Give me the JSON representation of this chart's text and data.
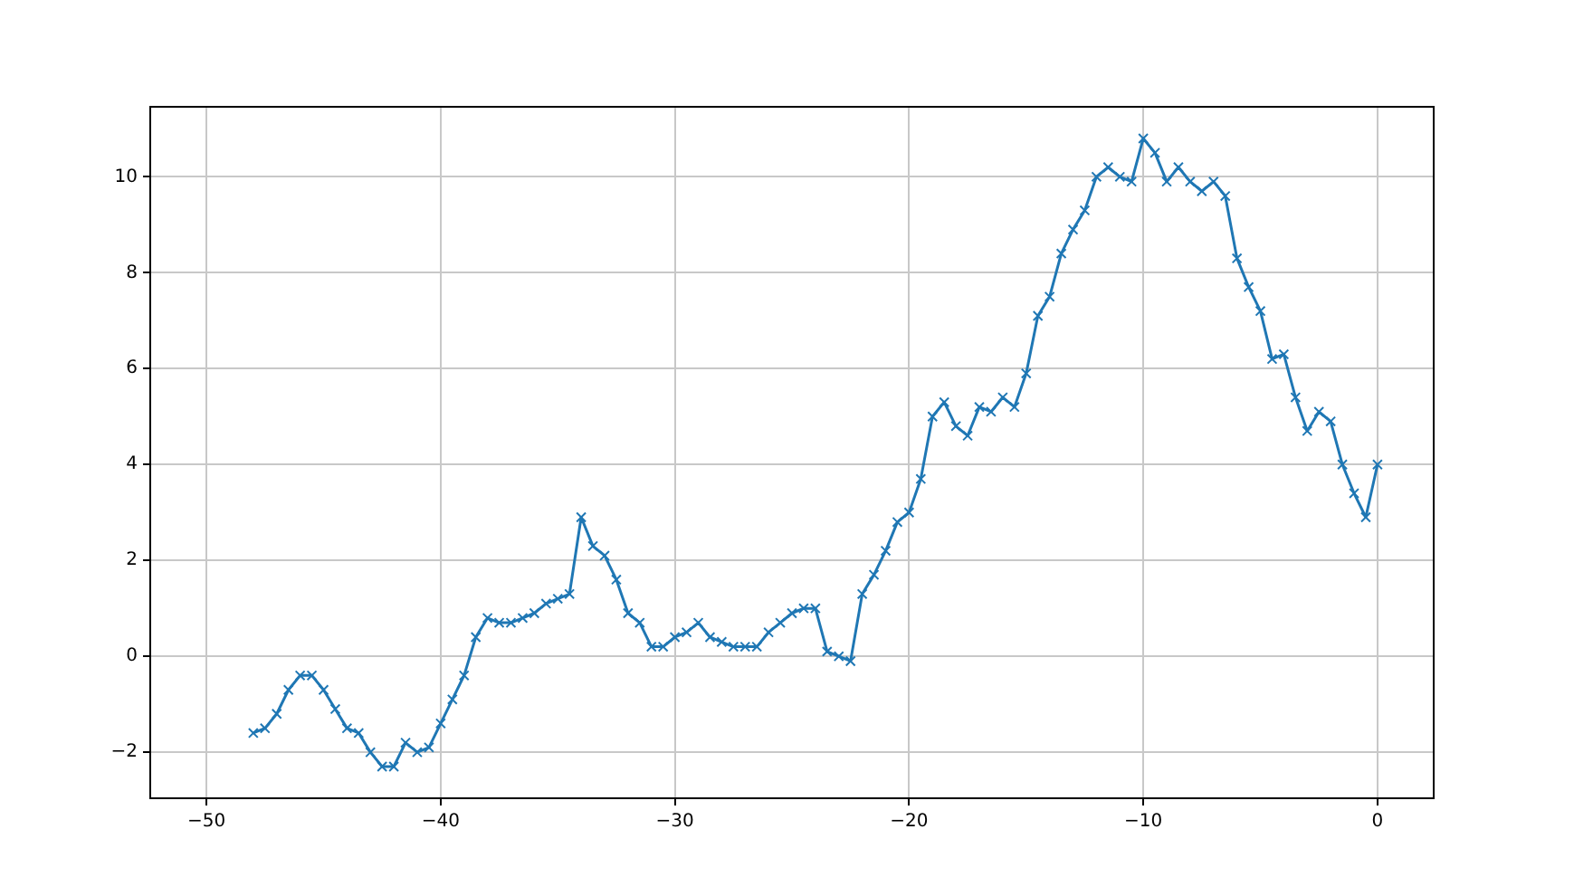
{
  "chart_data": {
    "type": "line",
    "x": [
      -48,
      -47.5,
      -47,
      -46.5,
      -46,
      -45.5,
      -45,
      -44.5,
      -44,
      -43.5,
      -43,
      -42.5,
      -42,
      -41.5,
      -41,
      -40.5,
      -40,
      -39.5,
      -39,
      -38.5,
      -38,
      -37.5,
      -37,
      -36.5,
      -36,
      -35.5,
      -35,
      -34.5,
      -34,
      -33.5,
      -33,
      -32.5,
      -32,
      -31.5,
      -31,
      -30.5,
      -30,
      -29.5,
      -29,
      -28.5,
      -28,
      -27.5,
      -27,
      -26.5,
      -26,
      -25.5,
      -25,
      -24.5,
      -24,
      -23.5,
      -23,
      -22.5,
      -22,
      -21.5,
      -21,
      -20.5,
      -20,
      -19.5,
      -19,
      -18.5,
      -18,
      -17.5,
      -17,
      -16.5,
      -16,
      -15.5,
      -15,
      -14.5,
      -14,
      -13.5,
      -13,
      -12.5,
      -12,
      -11.5,
      -11,
      -10.5,
      -10,
      -9.5,
      -9,
      -8.5,
      -8,
      -7.5,
      -7,
      -6.5,
      -6,
      -5.5,
      -5,
      -4.5,
      -4,
      -3.5,
      -3,
      -2.5,
      -2,
      -1.5,
      -1,
      -0.5,
      0
    ],
    "series": [
      {
        "color": "#1f77b4",
        "values": [
          -1.6,
          -1.5,
          -1.2,
          -0.7,
          -0.4,
          -0.4,
          -0.7,
          -1.1,
          -1.5,
          -1.6,
          -2.0,
          -2.3,
          -2.3,
          -1.8,
          -2.0,
          -1.9,
          -1.4,
          -0.9,
          -0.4,
          0.4,
          0.8,
          0.7,
          0.7,
          0.8,
          0.9,
          1.1,
          1.2,
          1.3,
          2.9,
          2.3,
          2.1,
          1.6,
          0.9,
          0.7,
          0.2,
          0.2,
          0.4,
          0.5,
          0.7,
          0.4,
          0.3,
          0.2,
          0.2,
          0.2,
          0.5,
          0.7,
          0.9,
          1.0,
          1.0,
          0.1,
          0.0,
          -0.1,
          1.3,
          1.7,
          2.2,
          2.8,
          3.0,
          3.7,
          5.0,
          5.3,
          4.8,
          4.6,
          5.2,
          5.1,
          5.4,
          5.2,
          5.9,
          7.1,
          7.5,
          8.4,
          8.9,
          9.3,
          10.0,
          10.2,
          10.0,
          9.9,
          10.8,
          10.5,
          9.9,
          10.2,
          9.9,
          9.7,
          9.9,
          9.6,
          8.3,
          7.7,
          7.2,
          6.2,
          6.3,
          5.4,
          4.7,
          5.1,
          4.9,
          4.0,
          3.4,
          2.9,
          4.0
        ]
      }
    ],
    "xlim": [
      -52.4,
      2.4
    ],
    "xticks": [
      -50,
      -40,
      -30,
      -20,
      -10,
      0
    ],
    "ylim": [
      -2.96,
      11.46
    ],
    "yticks": [
      -2,
      0,
      2,
      4,
      6,
      8,
      10
    ],
    "grid": true,
    "marker": "cross",
    "line_style": "solid"
  }
}
